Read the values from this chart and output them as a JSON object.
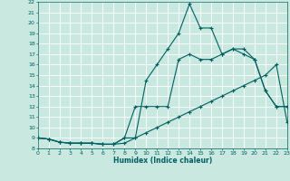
{
  "xlabel": "Humidex (Indice chaleur)",
  "xlim": [
    0,
    23
  ],
  "ylim": [
    8,
    22
  ],
  "yticks": [
    8,
    9,
    10,
    11,
    12,
    13,
    14,
    15,
    16,
    17,
    18,
    19,
    20,
    21,
    22
  ],
  "xticks": [
    0,
    1,
    2,
    3,
    4,
    5,
    6,
    7,
    8,
    9,
    10,
    11,
    12,
    13,
    14,
    15,
    16,
    17,
    18,
    19,
    20,
    21,
    22,
    23
  ],
  "bg_color": "#c8e8e0",
  "grid_color": "#b0d8d0",
  "line_color": "#006060",
  "line1_x": [
    0,
    1,
    2,
    3,
    4,
    5,
    6,
    7,
    8,
    9,
    10,
    11,
    12,
    13,
    14,
    15,
    16,
    17,
    18,
    19,
    20,
    21,
    22,
    23
  ],
  "line1_y": [
    9.0,
    8.9,
    8.6,
    8.5,
    8.5,
    8.5,
    8.4,
    8.4,
    8.5,
    9.0,
    9.5,
    10.0,
    10.5,
    11.0,
    11.5,
    12.0,
    12.5,
    13.0,
    13.5,
    14.0,
    14.5,
    15.0,
    16.0,
    10.5
  ],
  "line2_x": [
    0,
    1,
    2,
    3,
    4,
    5,
    6,
    7,
    8,
    9,
    10,
    11,
    12,
    13,
    14,
    15,
    16,
    17,
    18,
    19,
    20,
    21,
    22,
    23
  ],
  "line2_y": [
    9.0,
    8.9,
    8.6,
    8.5,
    8.5,
    8.5,
    8.4,
    8.4,
    9.0,
    12.0,
    12.0,
    12.0,
    12.0,
    16.5,
    17.0,
    16.5,
    16.5,
    17.0,
    17.5,
    17.5,
    16.5,
    13.5,
    12.0,
    12.0
  ],
  "line3_x": [
    0,
    1,
    2,
    3,
    4,
    5,
    6,
    7,
    8,
    9,
    10,
    11,
    12,
    13,
    14,
    15,
    16,
    17,
    18,
    19,
    20,
    21,
    22,
    23
  ],
  "line3_y": [
    9.0,
    8.9,
    8.6,
    8.5,
    8.5,
    8.5,
    8.4,
    8.4,
    9.0,
    9.0,
    14.5,
    16.0,
    17.5,
    19.0,
    21.8,
    19.5,
    19.5,
    17.0,
    17.5,
    17.0,
    16.5,
    13.5,
    12.0,
    12.0
  ]
}
